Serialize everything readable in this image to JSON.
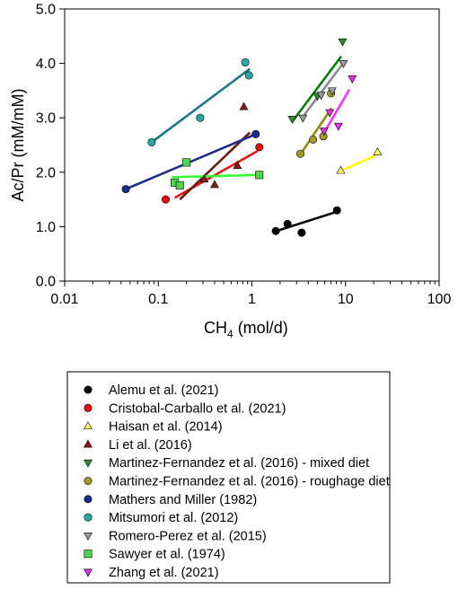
{
  "chart_data": {
    "type": "scatter",
    "title": "",
    "xlabel": "CH",
    "xlabel_sub": "4",
    "xlabel_unit": " (mol/d)",
    "ylabel": "Ac/Pr (mM/mM)",
    "xscale": "log",
    "xlim": [
      0.01,
      100
    ],
    "ylim": [
      0.0,
      5.0
    ],
    "x_ticks": [
      0.01,
      0.1,
      1,
      10,
      100
    ],
    "x_tick_labels": [
      "0.01",
      "0.1",
      "1",
      "10",
      "100"
    ],
    "y_ticks": [
      0,
      1,
      2,
      3,
      4,
      5
    ],
    "y_tick_labels": [
      "0.0",
      "1.0",
      "2.0",
      "3.0",
      "4.0",
      "5.0"
    ],
    "grid": false,
    "legend_position": "below",
    "series": [
      {
        "name": "Alemu et al. (2021)",
        "marker": "circle",
        "color": "#000000",
        "line_color": "#000000",
        "x": [
          1.8,
          2.4,
          3.4,
          8.1
        ],
        "y": [
          0.92,
          1.05,
          0.89,
          1.3
        ],
        "fit_x": [
          1.75,
          8.3
        ],
        "fit_y": [
          0.91,
          1.28
        ]
      },
      {
        "name": "Cristobal-Carballo et al. (2021)",
        "marker": "circle",
        "color": "#ff0000",
        "line_color": "#e31a1c",
        "x": [
          0.12,
          1.2
        ],
        "y": [
          1.5,
          2.46
        ],
        "fit_x": [
          0.15,
          1.15
        ],
        "fit_y": [
          1.53,
          2.39
        ]
      },
      {
        "name": "Haisan et al. (2014)",
        "marker": "triangle-up",
        "color": "#ffff66",
        "line_color": "#ffff00",
        "x": [
          8.9,
          22.0
        ],
        "y": [
          2.03,
          2.37
        ],
        "fit_x": [
          9.6,
          21.0
        ],
        "fit_y": [
          2.05,
          2.31
        ]
      },
      {
        "name": "Li et al. (2016)",
        "marker": "triangle-up",
        "color": "#8b1a1a",
        "line_color": "#6b1a0c",
        "x": [
          0.31,
          0.4,
          0.7,
          0.82
        ],
        "y": [
          1.87,
          1.77,
          2.12,
          3.2
        ],
        "fit_x": [
          0.17,
          0.95
        ],
        "fit_y": [
          1.5,
          2.73
        ]
      },
      {
        "name": "Martinez-Fernandez et al. (2016) - mixed diet",
        "marker": "triangle-down",
        "color": "#2e8b2e",
        "line_color": "#0a7a0a",
        "x": [
          2.7,
          5.0,
          9.3
        ],
        "y": [
          2.98,
          3.4,
          4.4
        ],
        "fit_x": [
          2.7,
          9.0
        ],
        "fit_y": [
          2.93,
          4.13
        ]
      },
      {
        "name": "Martinez-Fernandez et al. (2016) - roughage diet",
        "marker": "circle",
        "color": "#a09a28",
        "line_color": "#8b8b10",
        "x": [
          3.3,
          4.5,
          5.8,
          7.0
        ],
        "y": [
          2.34,
          2.6,
          2.66,
          3.45
        ],
        "fit_x": [
          3.3,
          7.1
        ],
        "fit_y": [
          2.33,
          3.18
        ]
      },
      {
        "name": "Mathers and Miller (1982)",
        "marker": "circle",
        "color": "#1f2b8a",
        "line_color": "#1f2b8a",
        "x": [
          0.045,
          1.1
        ],
        "y": [
          1.69,
          2.7
        ],
        "fit_x": [
          0.045,
          1.1
        ],
        "fit_y": [
          1.69,
          2.7
        ]
      },
      {
        "name": "Mitsumori et al. (2012)",
        "marker": "circle",
        "color": "#2aa6a6",
        "line_color": "#1a7a80",
        "x": [
          0.085,
          0.28,
          0.85,
          0.93
        ],
        "y": [
          2.55,
          3.0,
          4.02,
          3.78
        ],
        "fit_x": [
          0.085,
          0.95
        ],
        "fit_y": [
          2.55,
          3.9
        ]
      },
      {
        "name": "Romero-Perez et al. (2015)",
        "marker": "triangle-down",
        "color": "#999999",
        "line_color": "#8a8a8a",
        "x": [
          3.5,
          5.5,
          7.2,
          9.5
        ],
        "y": [
          3.0,
          3.42,
          3.5,
          4.0
        ],
        "fit_x": [
          3.4,
          9.6
        ],
        "fit_y": [
          2.99,
          4.02
        ]
      },
      {
        "name": "Sawyer et al. (1974)",
        "marker": "square",
        "color": "#4cd64c",
        "line_color": "#33ff33",
        "x": [
          0.15,
          0.17,
          0.2,
          1.2
        ],
        "y": [
          1.81,
          1.76,
          2.18,
          1.95
        ],
        "fit_x": [
          0.14,
          1.2
        ],
        "fit_y": [
          1.91,
          1.95
        ]
      },
      {
        "name": "Zhang et al. (2021)",
        "marker": "triangle-down",
        "color": "#e133e1",
        "line_color": "#ff33ff",
        "x": [
          5.9,
          6.8,
          8.4,
          11.8
        ],
        "y": [
          2.76,
          3.1,
          2.85,
          3.72
        ],
        "fit_x": [
          6.1,
          11.0
        ],
        "fit_y": [
          2.77,
          3.52
        ]
      }
    ]
  }
}
